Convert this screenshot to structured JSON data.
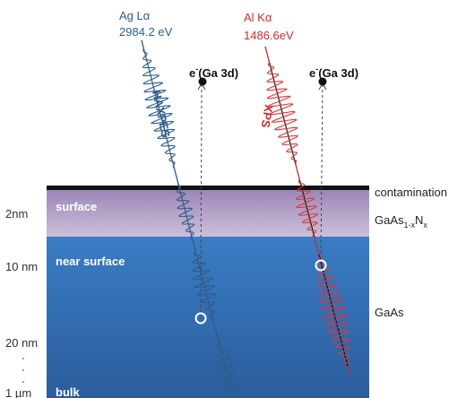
{
  "beams": [
    {
      "source": "Ag Lα",
      "energy": "2984.2 eV",
      "technique": "HAXPES"
    },
    {
      "source": "Al Kα",
      "energy": "1486.6eV",
      "technique": "XPS"
    }
  ],
  "photoelectrons": [
    {
      "symbol": "e",
      "charge": "-",
      "orbital": "(Ga 3d)"
    },
    {
      "symbol": "e",
      "charge": "-",
      "orbital": "(Ga 3d)"
    }
  ],
  "layers": [
    "surface",
    "near surface",
    "bulk"
  ],
  "depths": [
    "2nm",
    "10 nm",
    "20 nm",
    "1 µm"
  ],
  "materials": {
    "contamination": "contamination",
    "alloy": {
      "base": "GaAs",
      "sub1": "1-x",
      "element": "N",
      "sub2": "x"
    },
    "substrate": "GaAs"
  }
}
